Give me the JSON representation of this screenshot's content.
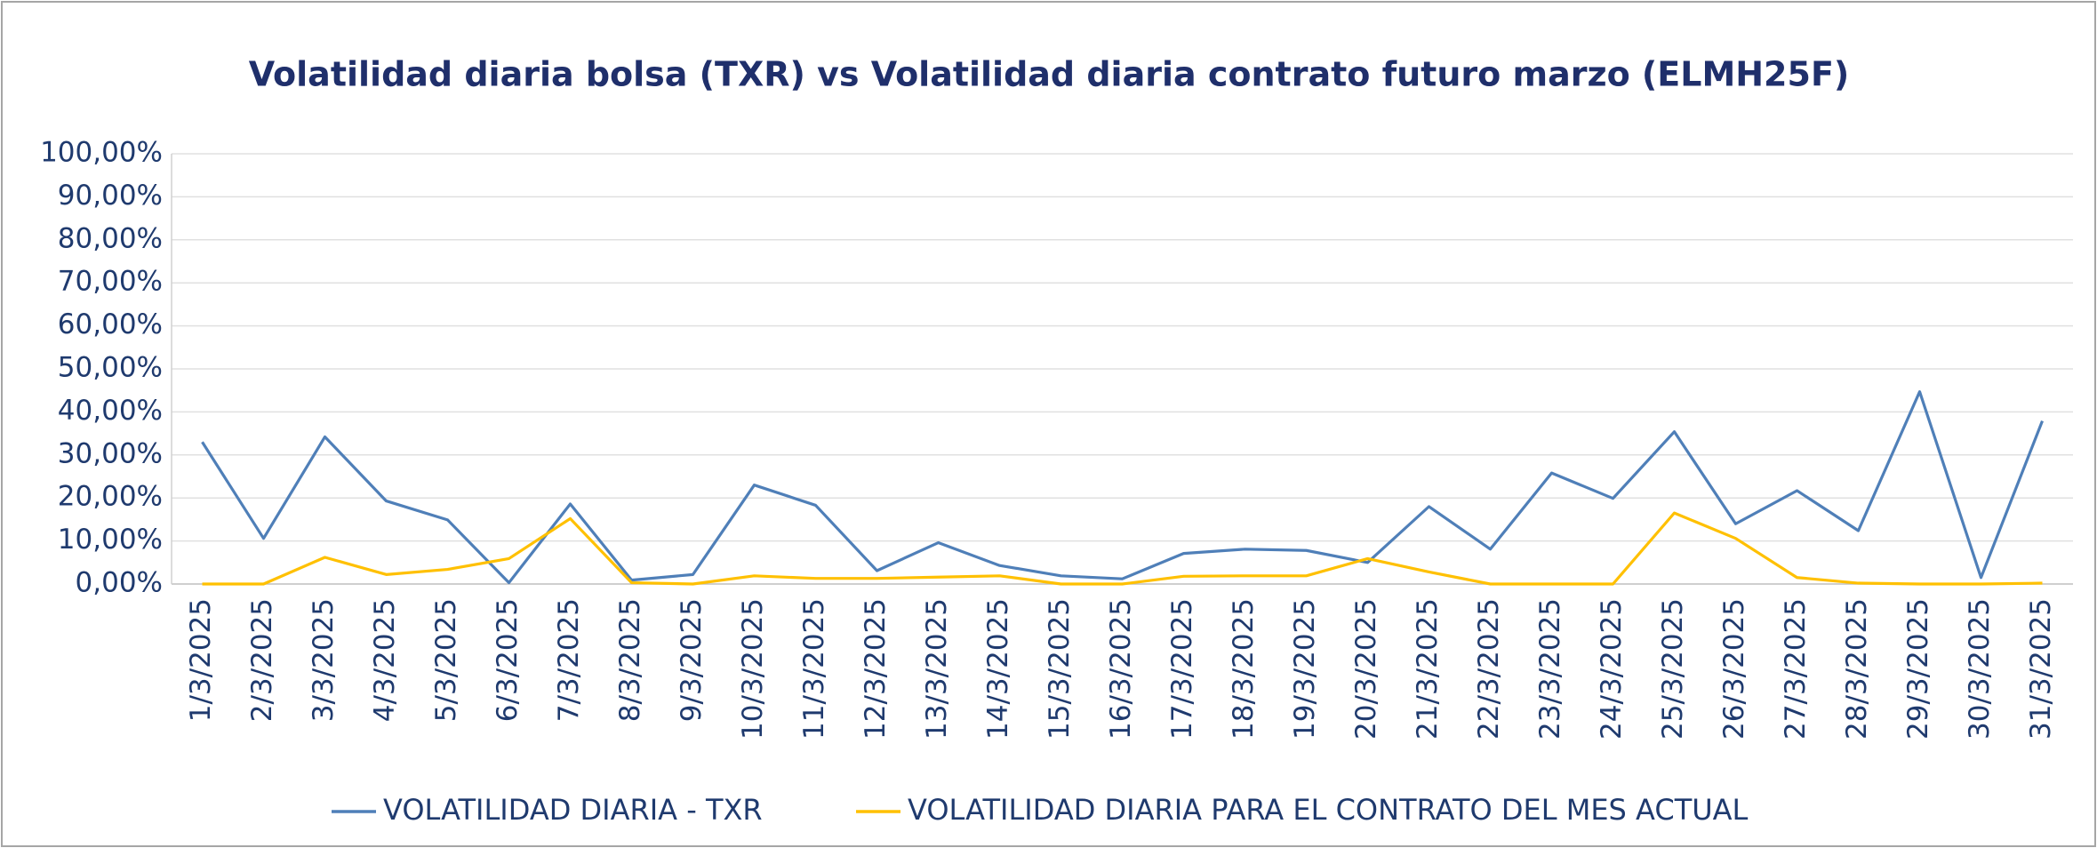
{
  "chart_data": {
    "type": "line",
    "title": "Volatilidad diaria bolsa (TXR) vs Volatilidad diaria contrato futuro marzo (ELMH25F)",
    "categories": [
      "1/3/2025",
      "2/3/2025",
      "3/3/2025",
      "4/3/2025",
      "5/3/2025",
      "6/3/2025",
      "7/3/2025",
      "8/3/2025",
      "9/3/2025",
      "10/3/2025",
      "11/3/2025",
      "12/3/2025",
      "13/3/2025",
      "14/3/2025",
      "15/3/2025",
      "16/3/2025",
      "17/3/2025",
      "18/3/2025",
      "19/3/2025",
      "20/3/2025",
      "21/3/2025",
      "22/3/2025",
      "23/3/2025",
      "24/3/2025",
      "25/3/2025",
      "26/3/2025",
      "27/3/2025",
      "28/3/2025",
      "29/3/2025",
      "30/3/2025",
      "31/3/2025"
    ],
    "series": [
      {
        "name": "VOLATILIDAD DIARIA - TXR",
        "color": "#4f7fb8",
        "values": [
          33,
          10.6,
          34.2,
          19.3,
          14.9,
          0.3,
          18.6,
          0.9,
          2.2,
          23,
          18.3,
          3.1,
          9.6,
          4.3,
          1.9,
          1.2,
          7.1,
          8.1,
          7.8,
          5.0,
          18,
          8.1,
          25.8,
          19.9,
          35.4,
          14,
          21.7,
          12.4,
          44.7,
          1.5,
          37.9
        ]
      },
      {
        "name": "VOLATILIDAD DIARIA PARA EL CONTRATO DEL MES ACTUAL",
        "color": "#ffc000",
        "values": [
          0,
          0,
          6.2,
          2.2,
          3.4,
          5.9,
          15.2,
          0.3,
          0,
          1.9,
          1.3,
          1.3,
          1.6,
          1.9,
          0,
          0,
          1.8,
          1.9,
          1.9,
          5.9,
          2.8,
          0,
          0,
          0,
          16.5,
          10.6,
          1.5,
          0.2,
          0,
          0,
          0.2
        ]
      }
    ],
    "ylim": [
      0,
      100
    ],
    "yticks": [
      {
        "value": 0,
        "label": "0,00%"
      },
      {
        "value": 10,
        "label": "10,00%"
      },
      {
        "value": 20,
        "label": "20,00%"
      },
      {
        "value": 30,
        "label": "30,00%"
      },
      {
        "value": 40,
        "label": "40,00%"
      },
      {
        "value": 50,
        "label": "50,00%"
      },
      {
        "value": 60,
        "label": "60,00%"
      },
      {
        "value": 70,
        "label": "70,00%"
      },
      {
        "value": 80,
        "label": "80,00%"
      },
      {
        "value": 90,
        "label": "90,00%"
      },
      {
        "value": 100,
        "label": "100,00%"
      }
    ],
    "grid": true,
    "legend": "bottom"
  }
}
